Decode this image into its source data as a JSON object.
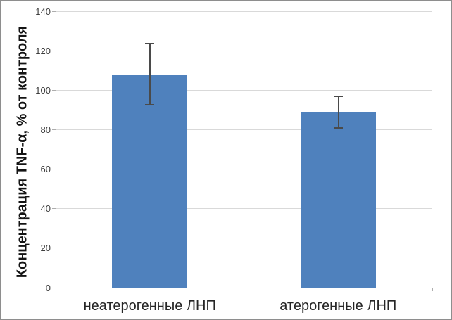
{
  "chart_data": {
    "type": "bar",
    "title": "",
    "categories": [
      "неатерогенные ЛНП",
      "атерогенные ЛНП"
    ],
    "values": [
      108,
      89
    ],
    "errors": [
      15.5,
      8
    ],
    "error_bars": [
      {
        "upper": 123.5,
        "lower": 92.5
      },
      {
        "upper": 97,
        "lower": 81
      }
    ],
    "xlabel": "",
    "ylabel": "Концентрация TNF-α, % от контроля",
    "ylim": [
      0,
      140
    ],
    "yticks": [
      0,
      20,
      40,
      60,
      80,
      100,
      120,
      140
    ],
    "grid": true,
    "legend": "none",
    "colors": {
      "bar_fill": "#4f81bd",
      "gridline": "#d9d9d9",
      "axis": "#adadad",
      "error_bar": "#4a4a4a",
      "tick_label": "#3d3d3d",
      "category_label": "#262626",
      "ylabel_color": "#141414",
      "background": "#ffffff",
      "border": "#8e8e8e"
    }
  }
}
